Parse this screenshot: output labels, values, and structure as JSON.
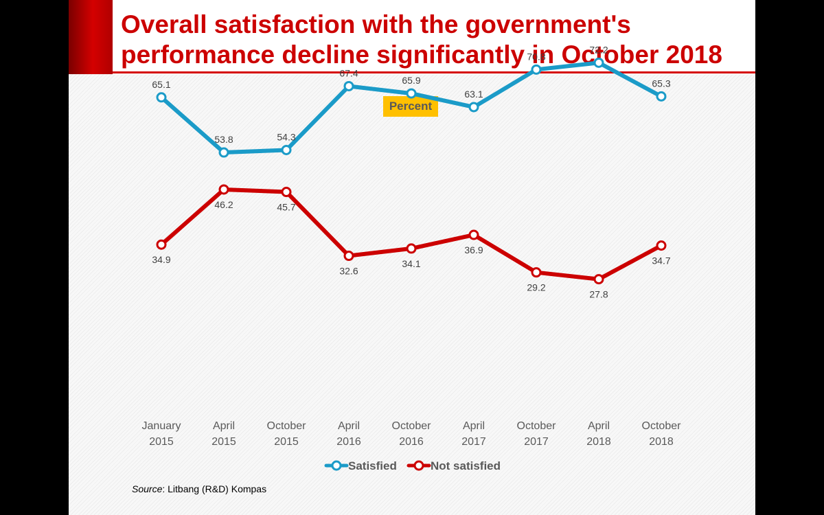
{
  "title": "Overall satisfaction with the  government's\nperformance decline significantly in October 2018",
  "source": {
    "label": "Source",
    "text": ": Litbang (R&D) Kompas"
  },
  "colors": {
    "accent": "#cc0000",
    "satisfied": "#1b9bc8",
    "not_satisfied": "#cc0000",
    "badge": "#ffc000"
  },
  "chart_data": {
    "type": "line",
    "title": "Percent",
    "categories": [
      [
        "January",
        "2015"
      ],
      [
        "April",
        "2015"
      ],
      [
        "October",
        "2015"
      ],
      [
        "April",
        "2016"
      ],
      [
        "October",
        "2016"
      ],
      [
        "April",
        "2017"
      ],
      [
        "October",
        "2017"
      ],
      [
        "April",
        "2018"
      ],
      [
        "October",
        "2018"
      ]
    ],
    "series": [
      {
        "name": "Satisfied",
        "color": "#1b9bc8",
        "label_position": "above",
        "values": [
          65.1,
          53.8,
          54.3,
          67.4,
          65.9,
          63.1,
          70.8,
          72.2,
          65.3
        ]
      },
      {
        "name": "Not satisfied",
        "color": "#cc0000",
        "label_position": "below",
        "values": [
          34.9,
          46.2,
          45.7,
          32.6,
          34.1,
          36.9,
          29.2,
          27.8,
          34.7
        ]
      }
    ],
    "legend": "bottom",
    "grid": false
  }
}
